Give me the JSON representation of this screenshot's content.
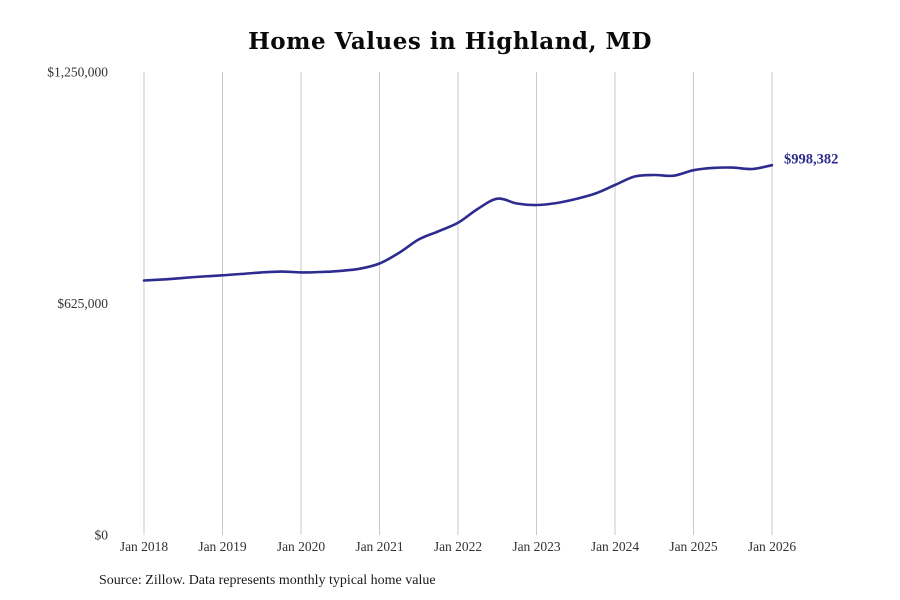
{
  "title": "Home Values in Highland, MD",
  "source_note": "Source: Zillow. Data represents monthly typical home value",
  "colors": {
    "line": "#2d2b8f",
    "grid": "#c9c9c9",
    "tick_text": "#333333",
    "title_text": "#0a0a0a"
  },
  "chart_data": {
    "type": "line",
    "title": "Home Values in Highland, MD",
    "xlabel": "",
    "ylabel": "",
    "ylim": [
      0,
      1250000
    ],
    "grid": "vertical-only",
    "legend": "none",
    "end_label": "$998,382",
    "end_value": 998382,
    "y_ticks": [
      {
        "value": 1250000,
        "label": "$1,250,000"
      },
      {
        "value": 625000,
        "label": "$625,000"
      },
      {
        "value": 0,
        "label": "$0"
      }
    ],
    "x_tick_labels": [
      "Jan 2018",
      "Jan 2019",
      "Jan 2020",
      "Jan 2021",
      "Jan 2022",
      "Jan 2023",
      "Jan 2024",
      "Jan 2025",
      "Jan 2026"
    ],
    "x": [
      "2018-01",
      "2018-04",
      "2018-07",
      "2018-10",
      "2019-01",
      "2019-04",
      "2019-07",
      "2019-10",
      "2020-01",
      "2020-04",
      "2020-07",
      "2020-10",
      "2021-01",
      "2021-04",
      "2021-07",
      "2021-10",
      "2022-01",
      "2022-04",
      "2022-07",
      "2022-10",
      "2023-01",
      "2023-04",
      "2023-07",
      "2023-10",
      "2024-01",
      "2024-04",
      "2024-07",
      "2024-10",
      "2025-01",
      "2025-04",
      "2025-07",
      "2025-10",
      "2026-01"
    ],
    "values": [
      687000,
      690000,
      694000,
      698000,
      701000,
      705000,
      709000,
      711000,
      709000,
      710000,
      713000,
      719000,
      733000,
      762000,
      798000,
      820000,
      843000,
      880000,
      908000,
      895000,
      891000,
      896000,
      907000,
      922000,
      945000,
      968000,
      972000,
      970000,
      985000,
      991000,
      992000,
      988000,
      998382
    ]
  }
}
